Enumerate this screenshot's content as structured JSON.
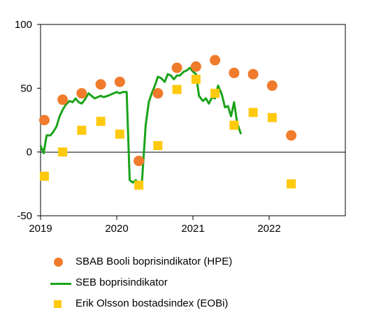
{
  "chart_data": {
    "type": "line",
    "x_tick_labels": [
      "2019",
      "2020",
      "2021",
      "2022"
    ],
    "x_range": [
      2019.0,
      2023.0
    ],
    "y_tick_labels": [
      "100",
      "50",
      "0",
      "-50"
    ],
    "y_ticks": [
      100,
      50,
      0,
      -50
    ],
    "ylim": [
      -50,
      100
    ],
    "grid": false,
    "legend_position": "bottom",
    "series": [
      {
        "name": "SBAB Booli boprisindikator (HPE)",
        "type": "scatter",
        "marker": "circle",
        "color": "#f07b2c",
        "points": [
          [
            2019.05,
            25
          ],
          [
            2019.29,
            41
          ],
          [
            2019.54,
            46
          ],
          [
            2019.79,
            53
          ],
          [
            2020.04,
            55
          ],
          [
            2020.29,
            -7
          ],
          [
            2020.54,
            46
          ],
          [
            2020.79,
            66
          ],
          [
            2021.04,
            67
          ],
          [
            2021.29,
            72
          ],
          [
            2021.54,
            62
          ],
          [
            2021.79,
            61
          ],
          [
            2022.04,
            52
          ],
          [
            2022.29,
            13
          ]
        ]
      },
      {
        "name": "SEB boprisindikator",
        "type": "line",
        "color": "#1aa31a",
        "points": [
          [
            2019.0,
            5
          ],
          [
            2019.04,
            -1
          ],
          [
            2019.08,
            13
          ],
          [
            2019.13,
            13
          ],
          [
            2019.17,
            16
          ],
          [
            2019.21,
            20
          ],
          [
            2019.25,
            28
          ],
          [
            2019.29,
            33
          ],
          [
            2019.33,
            37
          ],
          [
            2019.38,
            40
          ],
          [
            2019.42,
            39
          ],
          [
            2019.46,
            42
          ],
          [
            2019.5,
            39
          ],
          [
            2019.54,
            38
          ],
          [
            2019.58,
            41
          ],
          [
            2019.63,
            46
          ],
          [
            2019.67,
            44
          ],
          [
            2019.71,
            42
          ],
          [
            2019.75,
            43
          ],
          [
            2019.79,
            44
          ],
          [
            2019.83,
            43
          ],
          [
            2019.88,
            44
          ],
          [
            2019.92,
            45
          ],
          [
            2019.96,
            46
          ],
          [
            2020.0,
            47
          ],
          [
            2020.04,
            46
          ],
          [
            2020.08,
            47
          ],
          [
            2020.13,
            47
          ],
          [
            2020.17,
            -22
          ],
          [
            2020.21,
            -24
          ],
          [
            2020.25,
            -22
          ],
          [
            2020.29,
            -26
          ],
          [
            2020.33,
            -24
          ],
          [
            2020.38,
            21
          ],
          [
            2020.42,
            39
          ],
          [
            2020.46,
            46
          ],
          [
            2020.5,
            52
          ],
          [
            2020.54,
            59
          ],
          [
            2020.58,
            58
          ],
          [
            2020.63,
            55
          ],
          [
            2020.67,
            61
          ],
          [
            2020.71,
            60
          ],
          [
            2020.75,
            57
          ],
          [
            2020.79,
            60
          ],
          [
            2020.83,
            60
          ],
          [
            2020.88,
            63
          ],
          [
            2020.92,
            64
          ],
          [
            2020.96,
            66
          ],
          [
            2021.0,
            63
          ],
          [
            2021.04,
            61
          ],
          [
            2021.08,
            44
          ],
          [
            2021.13,
            40
          ],
          [
            2021.17,
            42
          ],
          [
            2021.21,
            38
          ],
          [
            2021.25,
            43
          ],
          [
            2021.29,
            42
          ],
          [
            2021.33,
            52
          ],
          [
            2021.38,
            45
          ],
          [
            2021.42,
            35
          ],
          [
            2021.46,
            36
          ],
          [
            2021.5,
            28
          ],
          [
            2021.54,
            39
          ],
          [
            2021.58,
            23
          ],
          [
            2021.63,
            14
          ]
        ]
      },
      {
        "name": "Erik Olsson bostadsindex (EOBi)",
        "type": "scatter",
        "marker": "square",
        "color": "#ffc90e",
        "points": [
          [
            2019.05,
            -19
          ],
          [
            2019.29,
            0
          ],
          [
            2019.54,
            17
          ],
          [
            2019.79,
            24
          ],
          [
            2020.04,
            14
          ],
          [
            2020.29,
            -26
          ],
          [
            2020.54,
            5
          ],
          [
            2020.79,
            49
          ],
          [
            2021.04,
            57
          ],
          [
            2021.29,
            46
          ],
          [
            2021.54,
            21
          ],
          [
            2021.79,
            31
          ],
          [
            2022.04,
            27
          ],
          [
            2022.29,
            -25
          ]
        ]
      }
    ]
  }
}
